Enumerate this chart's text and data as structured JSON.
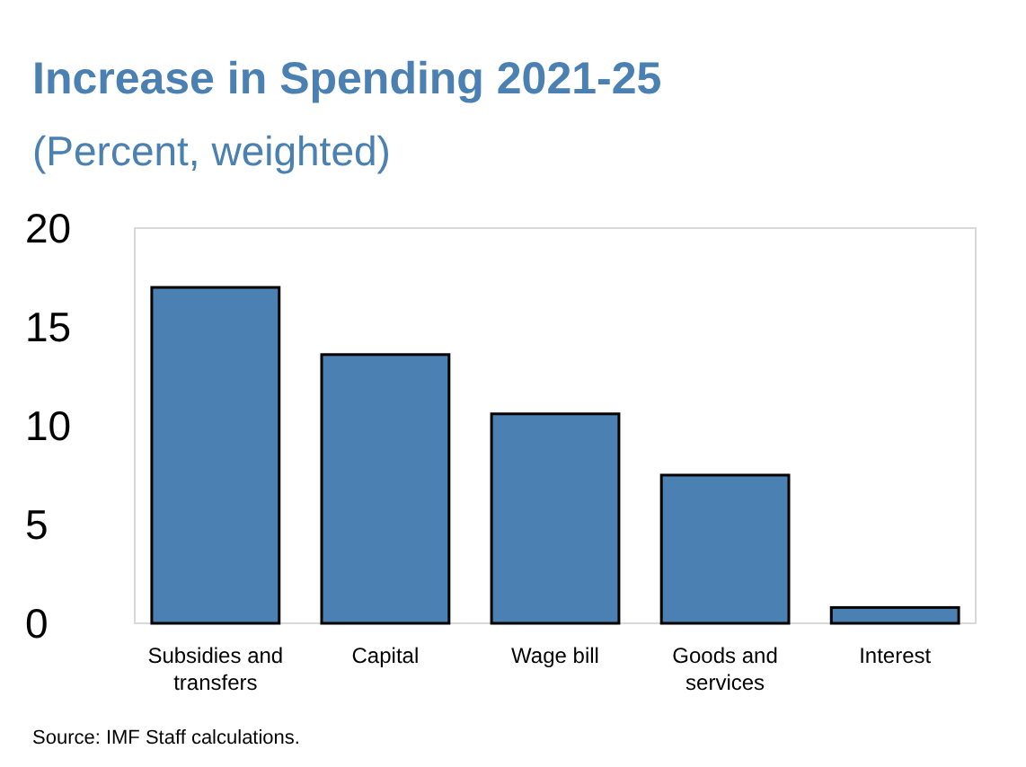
{
  "chart_data": {
    "type": "bar",
    "title": "Increase in Spending 2021-25",
    "subtitle": "(Percent, weighted)",
    "categories": [
      "Subsidies and transfers",
      "Capital",
      "Wage bill",
      "Goods and services",
      "Interest"
    ],
    "values": [
      17,
      13.6,
      10.6,
      7.5,
      0.8
    ],
    "color": "#4a80b2",
    "ylim": [
      0,
      20
    ],
    "yticks": [
      0,
      5,
      10,
      15,
      20
    ],
    "grid": false,
    "annotations": [
      "Source: IMF Staff calculations."
    ]
  }
}
